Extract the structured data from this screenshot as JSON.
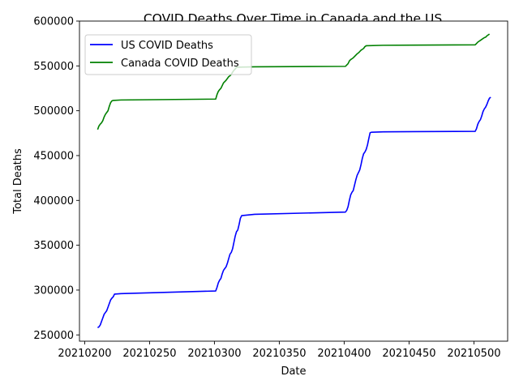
{
  "chart_data": {
    "type": "line",
    "title": "COVID Deaths Over Time in Canada and the US",
    "xlabel": "Date",
    "ylabel": "Total Deaths",
    "xlim": [
      20210196,
      20210526
    ],
    "ylim": [
      243000,
      600000
    ],
    "xticks": [
      20210200,
      20210250,
      20210300,
      20210350,
      20210400,
      20210450,
      20210500
    ],
    "yticks": [
      250000,
      300000,
      350000,
      400000,
      450000,
      500000,
      550000,
      600000
    ],
    "grid": false,
    "legend_position": "top-left",
    "series": [
      {
        "name": "US COVID Deaths",
        "color": "#0000ff",
        "points": [
          [
            20210210,
            258000
          ],
          [
            20210211,
            259000
          ],
          [
            20210212,
            261000
          ],
          [
            20210213,
            265000
          ],
          [
            20210214,
            269000
          ],
          [
            20210215,
            273000
          ],
          [
            20210216,
            275000
          ],
          [
            20210217,
            277000
          ],
          [
            20210218,
            281000
          ],
          [
            20210219,
            285000
          ],
          [
            20210220,
            289000
          ],
          [
            20210221,
            291000
          ],
          [
            20210222,
            292500
          ],
          [
            20210223,
            295500
          ],
          [
            20210228,
            296000
          ],
          [
            20210301,
            299000
          ],
          [
            20210302,
            303000
          ],
          [
            20210303,
            308000
          ],
          [
            20210304,
            311000
          ],
          [
            20210305,
            313000
          ],
          [
            20210306,
            318000
          ],
          [
            20210307,
            322000
          ],
          [
            20210308,
            324000
          ],
          [
            20210309,
            326000
          ],
          [
            20210310,
            330000
          ],
          [
            20210311,
            335000
          ],
          [
            20210312,
            340000
          ],
          [
            20210313,
            342000
          ],
          [
            20210314,
            346000
          ],
          [
            20210315,
            353000
          ],
          [
            20210316,
            360000
          ],
          [
            20210317,
            365000
          ],
          [
            20210318,
            367000
          ],
          [
            20210319,
            373000
          ],
          [
            20210320,
            380000
          ],
          [
            20210321,
            383000
          ],
          [
            20210331,
            384500
          ],
          [
            20210401,
            387000
          ],
          [
            20210402,
            389000
          ],
          [
            20210403,
            393000
          ],
          [
            20210404,
            400000
          ],
          [
            20210405,
            406000
          ],
          [
            20210406,
            409000
          ],
          [
            20210407,
            411000
          ],
          [
            20210408,
            417000
          ],
          [
            20210409,
            423000
          ],
          [
            20210410,
            428000
          ],
          [
            20210411,
            431000
          ],
          [
            20210412,
            434000
          ],
          [
            20210413,
            440000
          ],
          [
            20210414,
            447000
          ],
          [
            20210415,
            452000
          ],
          [
            20210416,
            454000
          ],
          [
            20210417,
            457000
          ],
          [
            20210418,
            462000
          ],
          [
            20210419,
            469000
          ],
          [
            20210420,
            475500
          ],
          [
            20210421,
            476000
          ],
          [
            20210430,
            476500
          ],
          [
            20210501,
            477000
          ],
          [
            20210502,
            480000
          ],
          [
            20210503,
            485000
          ],
          [
            20210504,
            488000
          ],
          [
            20210505,
            490000
          ],
          [
            20210506,
            494000
          ],
          [
            20210507,
            499000
          ],
          [
            20210508,
            502000
          ],
          [
            20210509,
            504000
          ],
          [
            20210510,
            507000
          ],
          [
            20210511,
            511000
          ],
          [
            20210512,
            514000
          ],
          [
            20210513,
            515000
          ]
        ]
      },
      {
        "name": "Canada COVID Deaths",
        "color": "#008000",
        "points": [
          [
            20210210,
            479000
          ],
          [
            20210211,
            483000
          ],
          [
            20210212,
            485000
          ],
          [
            20210213,
            486500
          ],
          [
            20210214,
            489000
          ],
          [
            20210215,
            493000
          ],
          [
            20210216,
            496000
          ],
          [
            20210217,
            498000
          ],
          [
            20210218,
            500000
          ],
          [
            20210219,
            505000
          ],
          [
            20210220,
            509000
          ],
          [
            20210221,
            511000
          ],
          [
            20210222,
            511500
          ],
          [
            20210228,
            512000
          ],
          [
            20210301,
            513000
          ],
          [
            20210302,
            518000
          ],
          [
            20210303,
            521500
          ],
          [
            20210304,
            523500
          ],
          [
            20210305,
            525000
          ],
          [
            20210306,
            528000
          ],
          [
            20210307,
            531000
          ],
          [
            20210308,
            532500
          ],
          [
            20210309,
            534000
          ],
          [
            20210310,
            536000
          ],
          [
            20210311,
            538000
          ],
          [
            20210312,
            539000
          ],
          [
            20210313,
            540500
          ],
          [
            20210314,
            543000
          ],
          [
            20210315,
            545000
          ],
          [
            20210316,
            546500
          ],
          [
            20210317,
            548500
          ],
          [
            20210331,
            549000
          ],
          [
            20210401,
            549500
          ],
          [
            20210402,
            551000
          ],
          [
            20210403,
            552500
          ],
          [
            20210404,
            555500
          ],
          [
            20210405,
            557000
          ],
          [
            20210406,
            558000
          ],
          [
            20210407,
            559000
          ],
          [
            20210408,
            560500
          ],
          [
            20210409,
            562000
          ],
          [
            20210410,
            563500
          ],
          [
            20210411,
            564500
          ],
          [
            20210412,
            566000
          ],
          [
            20210413,
            567500
          ],
          [
            20210414,
            568500
          ],
          [
            20210415,
            569500
          ],
          [
            20210416,
            571500
          ],
          [
            20210417,
            572500
          ],
          [
            20210430,
            573000
          ],
          [
            20210501,
            573500
          ],
          [
            20210502,
            575000
          ],
          [
            20210503,
            576500
          ],
          [
            20210504,
            577500
          ],
          [
            20210505,
            578500
          ],
          [
            20210506,
            579500
          ],
          [
            20210507,
            580500
          ],
          [
            20210508,
            581500
          ],
          [
            20210509,
            582000
          ],
          [
            20210510,
            583500
          ],
          [
            20210511,
            584500
          ],
          [
            20210512,
            585500
          ]
        ]
      }
    ]
  }
}
